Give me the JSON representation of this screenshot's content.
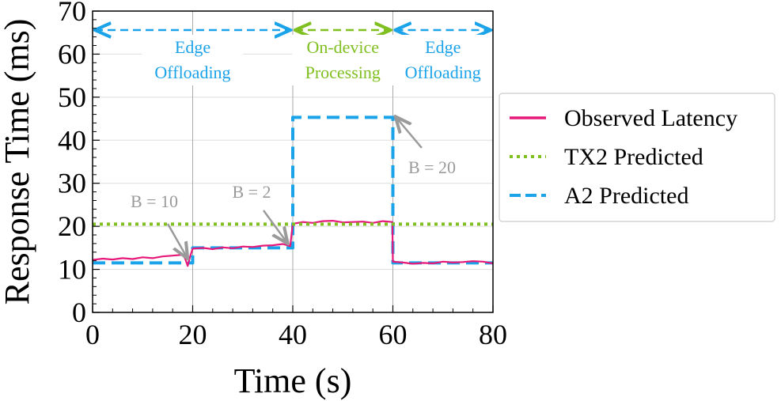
{
  "chart_data": {
    "type": "line",
    "xlabel": "Time (s)",
    "ylabel": "Response Time (ms)",
    "xlim": [
      0,
      80
    ],
    "ylim": [
      0,
      70
    ],
    "xticks": [
      "0",
      "20",
      "40",
      "60",
      "80"
    ],
    "yticks": [
      "0",
      "10",
      "20",
      "30",
      "40",
      "50",
      "60",
      "70"
    ],
    "grid": true,
    "series": [
      {
        "name": "Observed Latency",
        "color": "#e6197a",
        "style": "solid",
        "x": [
          0,
          2,
          4,
          6,
          8,
          10,
          12,
          14,
          16,
          18,
          18.5,
          19,
          19.5,
          20,
          22,
          24,
          26,
          28,
          30,
          32,
          34,
          36,
          38,
          39.5,
          40,
          42,
          44,
          46,
          48,
          50,
          52,
          54,
          56,
          58,
          59.9,
          60,
          62,
          64,
          66,
          68,
          70,
          72,
          74,
          76,
          78,
          80
        ],
        "values": [
          12.2,
          12.5,
          12.3,
          12.6,
          12.4,
          12.8,
          12.6,
          13.0,
          13.2,
          13.4,
          12.5,
          10.8,
          13.0,
          14.8,
          15.0,
          14.7,
          15.1,
          14.9,
          15.3,
          15.2,
          15.5,
          15.6,
          15.9,
          15.4,
          20.6,
          21.0,
          20.8,
          21.2,
          21.3,
          20.9,
          21.0,
          21.1,
          20.8,
          21.2,
          21.0,
          11.8,
          11.6,
          11.3,
          11.5,
          11.4,
          11.8,
          11.6,
          11.7,
          11.9,
          11.8,
          11.4
        ]
      },
      {
        "name": "TX2 Predicted",
        "color": "#7fbf1f",
        "style": "dotted",
        "x": [
          0,
          80
        ],
        "values": [
          20.5,
          20.5
        ]
      },
      {
        "name": "A2 Predicted",
        "color": "#1ba3ea",
        "style": "dashed",
        "x": [
          0,
          20,
          20,
          40,
          40,
          60,
          60,
          80
        ],
        "values": [
          11.5,
          11.5,
          15.0,
          15.0,
          45.3,
          45.3,
          11.5,
          11.5
        ]
      }
    ],
    "phases": [
      {
        "label_lines": [
          "Edge",
          "Offloading"
        ],
        "x_start": 0,
        "x_end": 40,
        "color": "#1ba3ea"
      },
      {
        "label_lines": [
          "On-device",
          "Processing"
        ],
        "x_start": 40,
        "x_end": 60,
        "color": "#7fbf1f"
      },
      {
        "label_lines": [
          "Edge",
          "Offloading"
        ],
        "x_start": 60,
        "x_end": 80,
        "color": "#1ba3ea"
      }
    ],
    "annotations": [
      {
        "text": "B = 10",
        "x": 19,
        "y": 12.5
      },
      {
        "text": "B = 2",
        "x": 39,
        "y": 16
      },
      {
        "text": "B = 20",
        "x": 60.5,
        "y": 45.5
      }
    ],
    "legend_position": "right"
  }
}
